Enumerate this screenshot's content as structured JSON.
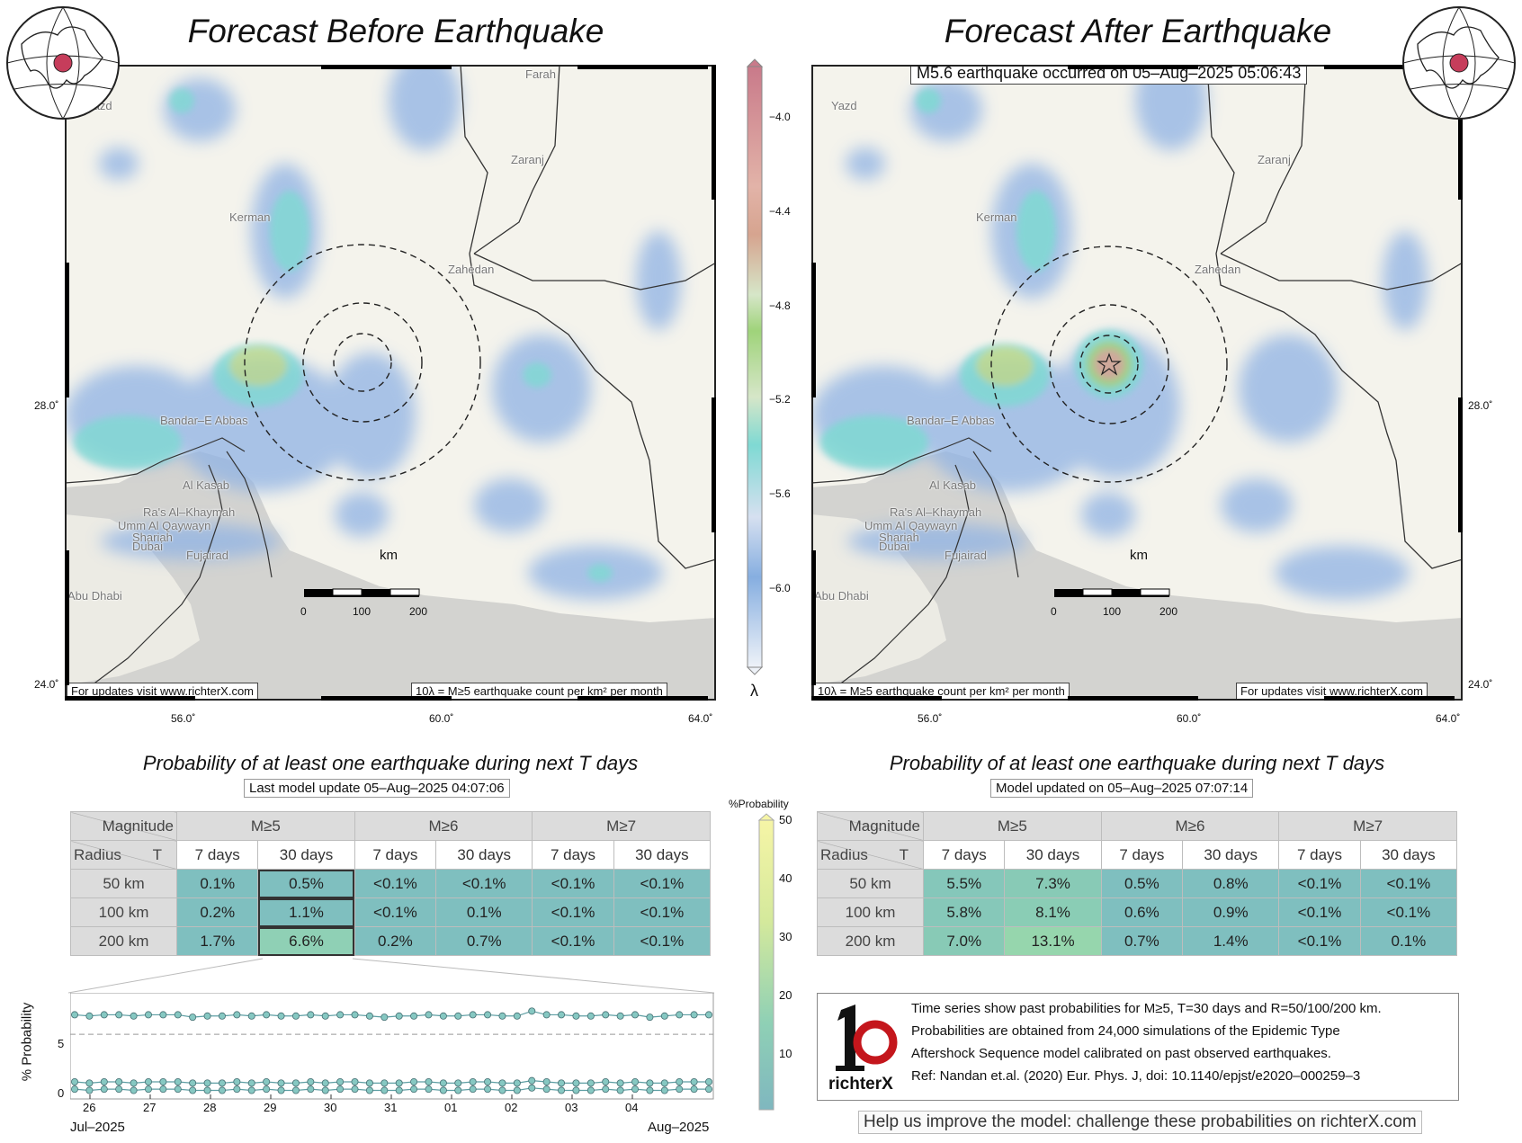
{
  "left_panel": {
    "title": "Forecast Before Earthquake",
    "footer_left": "For updates visit www.richterX.com",
    "footer_right": "10λ = M≥5 earthquake count per km² per month",
    "scale_label": "km",
    "scale_ticks": [
      "0",
      "100",
      "200"
    ],
    "cities": [
      {
        "name": "Farah",
        "key": "farah"
      },
      {
        "name": "Yazd",
        "key": "yazd"
      },
      {
        "name": "Zaranj",
        "key": "zaranj"
      },
      {
        "name": "Kerman",
        "key": "kerman"
      },
      {
        "name": "Zahedan",
        "key": "zahedan"
      },
      {
        "name": "Bandar–E Abbas",
        "key": "bandar"
      },
      {
        "name": "Al Kasab",
        "key": "alkasab"
      },
      {
        "name": "Ra's Al–Khaymah",
        "key": "ras"
      },
      {
        "name": "Umm Al Qaywayn",
        "key": "umm"
      },
      {
        "name": "Shariah",
        "key": "sharjah"
      },
      {
        "name": "Dubai",
        "key": "dubai"
      },
      {
        "name": "Fujairad",
        "key": "fujairad"
      },
      {
        "name": "Abu Dhabi",
        "key": "abudhabi"
      }
    ]
  },
  "right_panel": {
    "title": "Forecast After Earthquake",
    "event_label": "M5.6 earthquake occurred on 05–Aug–2025 05:06:43",
    "footer_left": "10λ = M≥5 earthquake count per km² per month",
    "footer_right": "For updates visit www.richterX.com",
    "scale_label": "km",
    "scale_ticks": [
      "0",
      "100",
      "200"
    ],
    "cities": [
      {
        "name": "Yazd",
        "key": "yazd"
      },
      {
        "name": "Zaranj",
        "key": "zaranj"
      },
      {
        "name": "Kerman",
        "key": "kerman"
      },
      {
        "name": "Zahedan",
        "key": "zahedan"
      },
      {
        "name": "Bandar–E Abbas",
        "key": "bandar"
      },
      {
        "name": "Al Kasab",
        "key": "alkasab"
      },
      {
        "name": "Ra's Al–Khaymah",
        "key": "ras"
      },
      {
        "name": "Umm Al Qaywayn",
        "key": "umm"
      },
      {
        "name": "Shariah",
        "key": "sharjah"
      },
      {
        "name": "Dubai",
        "key": "dubai"
      },
      {
        "name": "Fujairad",
        "key": "fujairad"
      },
      {
        "name": "Abu Dhabi",
        "key": "abudhabi"
      }
    ]
  },
  "axes": {
    "lon_ticks": [
      "56.0˚",
      "60.0˚",
      "64.0˚"
    ],
    "lat_ticks": [
      "28.0˚",
      "24.0˚"
    ]
  },
  "lambda_colorbar": {
    "symbol": "λ",
    "ticks": [
      "−4.0",
      "−4.4",
      "−4.8",
      "−5.2",
      "−5.6",
      "−6.0"
    ],
    "colors": [
      "#c97a8a",
      "#d6a48f",
      "#cfc3a8",
      "#9fd37a",
      "#d6e6c8",
      "#7fd9d3",
      "#86aee0"
    ]
  },
  "prob_colorbar": {
    "title": "%Probability",
    "ticks": [
      "50",
      "40",
      "30",
      "20",
      "10"
    ]
  },
  "left_table": {
    "subtitle": "Probability of at least one earthquake during next T days",
    "model_label": "Last model update 05–Aug–2025 04:07:06",
    "corner_top": "Magnitude",
    "corner_bottom_left": "Radius",
    "corner_bottom_right": "T",
    "magnitudes": [
      "M≥5",
      "M≥6",
      "M≥7"
    ],
    "periods": [
      "7 days",
      "30 days",
      "7 days",
      "30 days",
      "7 days",
      "30 days"
    ],
    "rows": [
      {
        "radius": "50 km",
        "values": [
          "0.1%",
          "0.5%",
          "<0.1%",
          "<0.1%",
          "<0.1%",
          "<0.1%"
        ]
      },
      {
        "radius": "100 km",
        "values": [
          "0.2%",
          "1.1%",
          "<0.1%",
          "0.1%",
          "<0.1%",
          "<0.1%"
        ]
      },
      {
        "radius": "200 km",
        "values": [
          "1.7%",
          "6.6%",
          "0.2%",
          "0.7%",
          "<0.1%",
          "<0.1%"
        ]
      }
    ]
  },
  "right_table": {
    "subtitle": "Probability of at least one earthquake during next T days",
    "model_label": "Model updated on 05–Aug–2025 07:07:14",
    "corner_top": "Magnitude",
    "corner_bottom_left": "Radius",
    "corner_bottom_right": "T",
    "magnitudes": [
      "M≥5",
      "M≥6",
      "M≥7"
    ],
    "periods": [
      "7 days",
      "30 days",
      "7 days",
      "30 days",
      "7 days",
      "30 days"
    ],
    "rows": [
      {
        "radius": "50 km",
        "values": [
          "5.5%",
          "7.3%",
          "0.5%",
          "0.8%",
          "<0.1%",
          "<0.1%"
        ]
      },
      {
        "radius": "100 km",
        "values": [
          "5.8%",
          "8.1%",
          "0.6%",
          "0.9%",
          "<0.1%",
          "<0.1%"
        ]
      },
      {
        "radius": "200 km",
        "values": [
          "7.0%",
          "13.1%",
          "0.7%",
          "1.4%",
          "<0.1%",
          "0.1%"
        ]
      }
    ]
  },
  "chart_data": {
    "type": "line",
    "ylabel": "% Probability",
    "yticks": [
      0,
      5
    ],
    "ylim": [
      -0.3,
      8.4
    ],
    "reference_line": 5,
    "x_tick_labels": [
      "26",
      "27",
      "28",
      "29",
      "30",
      "31",
      "01",
      "02",
      "03",
      "04"
    ],
    "x_start_label": "Jul–2025",
    "x_end_label": "Aug–2025",
    "x": [
      "25-Jul",
      "25-Jul",
      "26-Jul",
      "26-Jul",
      "26-Jul",
      "26-Jul",
      "27-Jul",
      "27-Jul",
      "27-Jul",
      "27-Jul",
      "28-Jul",
      "28-Jul",
      "28-Jul",
      "28-Jul",
      "29-Jul",
      "29-Jul",
      "29-Jul",
      "29-Jul",
      "30-Jul",
      "30-Jul",
      "30-Jul",
      "30-Jul",
      "31-Jul",
      "31-Jul",
      "31-Jul",
      "31-Jul",
      "01-Aug",
      "01-Aug",
      "01-Aug",
      "01-Aug",
      "02-Aug",
      "02-Aug",
      "02-Aug",
      "02-Aug",
      "03-Aug",
      "03-Aug",
      "03-Aug",
      "03-Aug",
      "04-Aug",
      "04-Aug",
      "04-Aug",
      "04-Aug",
      "05-Aug",
      "05-Aug"
    ],
    "series": [
      {
        "values": [
          6.6,
          6.5,
          6.6,
          6.6,
          6.5,
          6.6,
          6.6,
          6.6,
          6.4,
          6.5,
          6.5,
          6.6,
          6.5,
          6.6,
          6.5,
          6.5,
          6.6,
          6.5,
          6.6,
          6.6,
          6.5,
          6.4,
          6.5,
          6.5,
          6.6,
          6.5,
          6.5,
          6.6,
          6.6,
          6.5,
          6.5,
          6.9,
          6.6,
          6.6,
          6.5,
          6.5,
          6.6,
          6.5,
          6.6,
          6.4,
          6.5,
          6.6,
          6.6,
          6.6
        ]
      },
      {
        "values": [
          1.1,
          1.0,
          1.1,
          1.1,
          1.0,
          1.1,
          1.1,
          1.1,
          1.0,
          1.0,
          1.0,
          1.1,
          1.0,
          1.1,
          1.0,
          1.0,
          1.1,
          1.0,
          1.1,
          1.1,
          1.0,
          1.0,
          1.0,
          1.1,
          1.1,
          1.0,
          1.0,
          1.1,
          1.1,
          1.0,
          1.0,
          1.2,
          1.1,
          1.0,
          1.0,
          1.0,
          1.1,
          1.0,
          1.1,
          1.0,
          1.0,
          1.1,
          1.1,
          1.1
        ]
      },
      {
        "values": [
          0.5,
          0.4,
          0.5,
          0.5,
          0.4,
          0.5,
          0.5,
          0.5,
          0.4,
          0.4,
          0.4,
          0.5,
          0.4,
          0.5,
          0.4,
          0.4,
          0.5,
          0.4,
          0.5,
          0.5,
          0.4,
          0.4,
          0.4,
          0.5,
          0.5,
          0.4,
          0.4,
          0.5,
          0.5,
          0.4,
          0.4,
          0.6,
          0.5,
          0.4,
          0.4,
          0.4,
          0.5,
          0.4,
          0.5,
          0.4,
          0.4,
          0.5,
          0.5,
          0.5
        ]
      }
    ]
  },
  "info": {
    "logo_text": "richterX",
    "lines": [
      "Time series show past probabilities for M≥5, T=30 days and R=50/100/200 km.",
      "Probabilities are obtained from 24,000 simulations of the Epidemic Type",
      "Aftershock Sequence model calibrated on past observed earthquakes.",
      "Ref: Nandan et.al. (2020) Eur. Phys. J, doi: 10.1140/epjst/e2020–000259–3"
    ]
  },
  "help_text": "Help us improve the model: challenge these probabilities on richterX.com"
}
